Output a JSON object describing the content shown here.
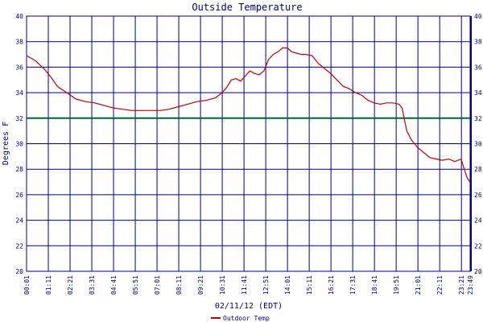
{
  "colors": {
    "grid": "#000080",
    "series": "#c00000",
    "reference": "#006633",
    "text": "#000080",
    "background": "#ffffff"
  },
  "chart_data": {
    "type": "line",
    "title": "Outside Temperature",
    "xlabel": "02/11/12 (EDT)",
    "ylabel": "Degrees F",
    "ylim": [
      20,
      40
    ],
    "yticks": [
      20,
      22,
      24,
      26,
      28,
      30,
      32,
      34,
      36,
      38,
      40
    ],
    "xlim": [
      "00:01",
      "23:49"
    ],
    "xticks": [
      "00:01",
      "01:11",
      "02:21",
      "03:31",
      "04:41",
      "05:51",
      "07:01",
      "08:11",
      "09:21",
      "10:31",
      "11:41",
      "12:51",
      "14:01",
      "15:11",
      "16:21",
      "17:31",
      "18:41",
      "19:51",
      "21:01",
      "22:11",
      "23:21",
      "23:49"
    ],
    "grid": true,
    "legend": "bottom",
    "reference_line": {
      "y": 32
    },
    "series": [
      {
        "name": "Outdoor Temp",
        "x": [
          "00:01",
          "00:30",
          "01:00",
          "01:20",
          "01:40",
          "02:10",
          "02:40",
          "03:10",
          "03:40",
          "04:10",
          "04:40",
          "05:10",
          "05:40",
          "06:10",
          "06:40",
          "07:10",
          "07:40",
          "08:10",
          "08:40",
          "09:10",
          "09:40",
          "10:10",
          "10:30",
          "10:45",
          "11:00",
          "11:15",
          "11:30",
          "11:45",
          "12:00",
          "12:15",
          "12:30",
          "12:45",
          "13:00",
          "13:15",
          "13:30",
          "13:45",
          "14:00",
          "14:15",
          "14:30",
          "14:45",
          "15:00",
          "15:20",
          "15:40",
          "16:00",
          "16:20",
          "16:40",
          "17:00",
          "17:20",
          "17:40",
          "18:00",
          "18:20",
          "18:40",
          "19:00",
          "19:20",
          "19:40",
          "20:00",
          "20:10",
          "20:25",
          "20:40",
          "20:50",
          "21:00",
          "21:20",
          "21:40",
          "22:00",
          "22:20",
          "22:40",
          "23:00",
          "23:20",
          "23:30",
          "23:40",
          "23:49"
        ],
        "y": [
          36.9,
          36.5,
          35.8,
          35.2,
          34.5,
          34.0,
          33.5,
          33.3,
          33.2,
          33.0,
          32.8,
          32.7,
          32.6,
          32.6,
          32.6,
          32.6,
          32.7,
          32.9,
          33.1,
          33.3,
          33.4,
          33.6,
          34.0,
          34.4,
          35.0,
          35.1,
          34.9,
          35.3,
          35.7,
          35.5,
          35.4,
          35.7,
          36.6,
          37.0,
          37.2,
          37.5,
          37.5,
          37.2,
          37.1,
          37.0,
          37.0,
          36.9,
          36.3,
          35.9,
          35.5,
          35.0,
          34.5,
          34.3,
          34.0,
          33.8,
          33.4,
          33.2,
          33.1,
          33.2,
          33.2,
          33.1,
          32.8,
          31.0,
          30.3,
          30.0,
          29.7,
          29.3,
          28.9,
          28.8,
          28.7,
          28.8,
          28.6,
          28.8,
          28.0,
          27.3,
          27.0
        ]
      }
    ]
  }
}
